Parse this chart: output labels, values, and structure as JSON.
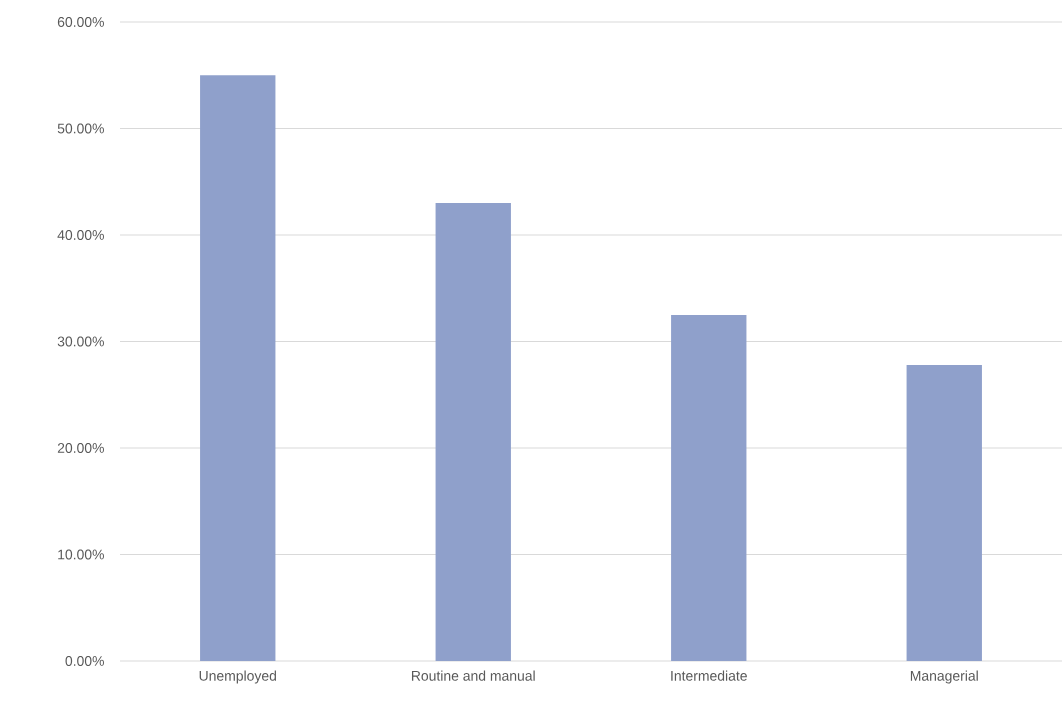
{
  "chart_data": {
    "type": "bar",
    "categories": [
      "Unemployed",
      "Routine and manual",
      "Intermediate",
      "Managerial"
    ],
    "values": [
      55,
      43,
      32.5,
      27.8
    ],
    "color": "#8fa0cb",
    "ylim": [
      0,
      60
    ],
    "yticks": [
      {
        "value": 0,
        "label": "0.00%"
      },
      {
        "value": 10,
        "label": "10.00%"
      },
      {
        "value": 20,
        "label": "20.00%"
      },
      {
        "value": 30,
        "label": "30.00%"
      },
      {
        "value": 40,
        "label": "40.00%"
      },
      {
        "value": 50,
        "label": "50.00%"
      },
      {
        "value": 60,
        "label": "60.00%"
      }
    ],
    "grid": "y"
  }
}
